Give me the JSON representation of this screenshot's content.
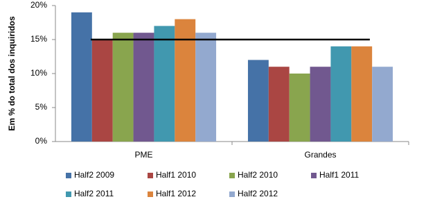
{
  "chart_data": {
    "type": "bar",
    "y_label": "Em % do total dos inquiridos",
    "categories": [
      "PME",
      "Grandes"
    ],
    "series": [
      {
        "name": "Half2 2009",
        "color": "#4572a7",
        "values": [
          19,
          12
        ]
      },
      {
        "name": "Half1 2010",
        "color": "#aa4643",
        "values": [
          15,
          11
        ]
      },
      {
        "name": "Half2 2010",
        "color": "#89a54e",
        "values": [
          16,
          10
        ]
      },
      {
        "name": "Half1 2011",
        "color": "#71588f",
        "values": [
          16,
          11
        ]
      },
      {
        "name": "Half2 2011",
        "color": "#4198af",
        "values": [
          17,
          14
        ]
      },
      {
        "name": "Half1 2012",
        "color": "#db843d",
        "values": [
          18,
          14
        ]
      },
      {
        "name": "Half2 2012",
        "color": "#93a9cf",
        "values": [
          16,
          11
        ]
      }
    ],
    "reference_line": 15,
    "ylim": [
      0,
      20
    ],
    "yticks": [
      {
        "value": 0,
        "label": "0%"
      },
      {
        "value": 5,
        "label": "5%"
      },
      {
        "value": 10,
        "label": "10%"
      },
      {
        "value": 15,
        "label": "15%"
      },
      {
        "value": 20,
        "label": "20%"
      }
    ],
    "legend": "bottom"
  }
}
